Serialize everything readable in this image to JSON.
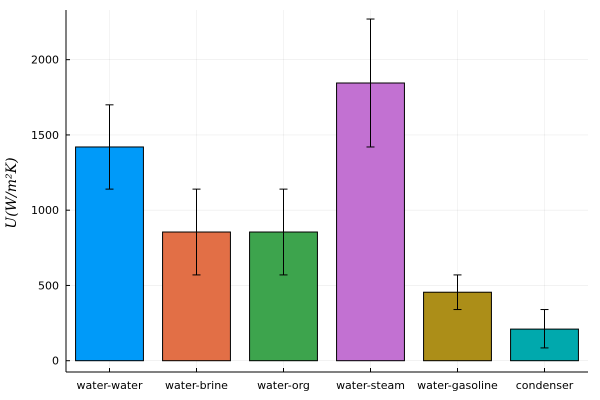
{
  "chart_data": {
    "type": "bar",
    "title": "",
    "xlabel": "",
    "ylabel": "U(W/m²K)",
    "categories": [
      "water-water",
      "water-brine",
      "water-org",
      "water-steam",
      "water-gasoline",
      "condenser"
    ],
    "values": [
      1420,
      855,
      855,
      1845,
      455,
      210
    ],
    "error_low": [
      1140,
      570,
      570,
      1420,
      340,
      85
    ],
    "error_high": [
      1700,
      1140,
      1140,
      2270,
      570,
      340
    ],
    "colors": [
      "#009af9",
      "#e26f46",
      "#3da44d",
      "#c271d2",
      "#ac8e18",
      "#00a9ad"
    ],
    "ylim": [
      -75,
      2330
    ],
    "yticks": [
      0,
      500,
      1000,
      1500,
      2000
    ],
    "grid": true,
    "legend": "none"
  }
}
